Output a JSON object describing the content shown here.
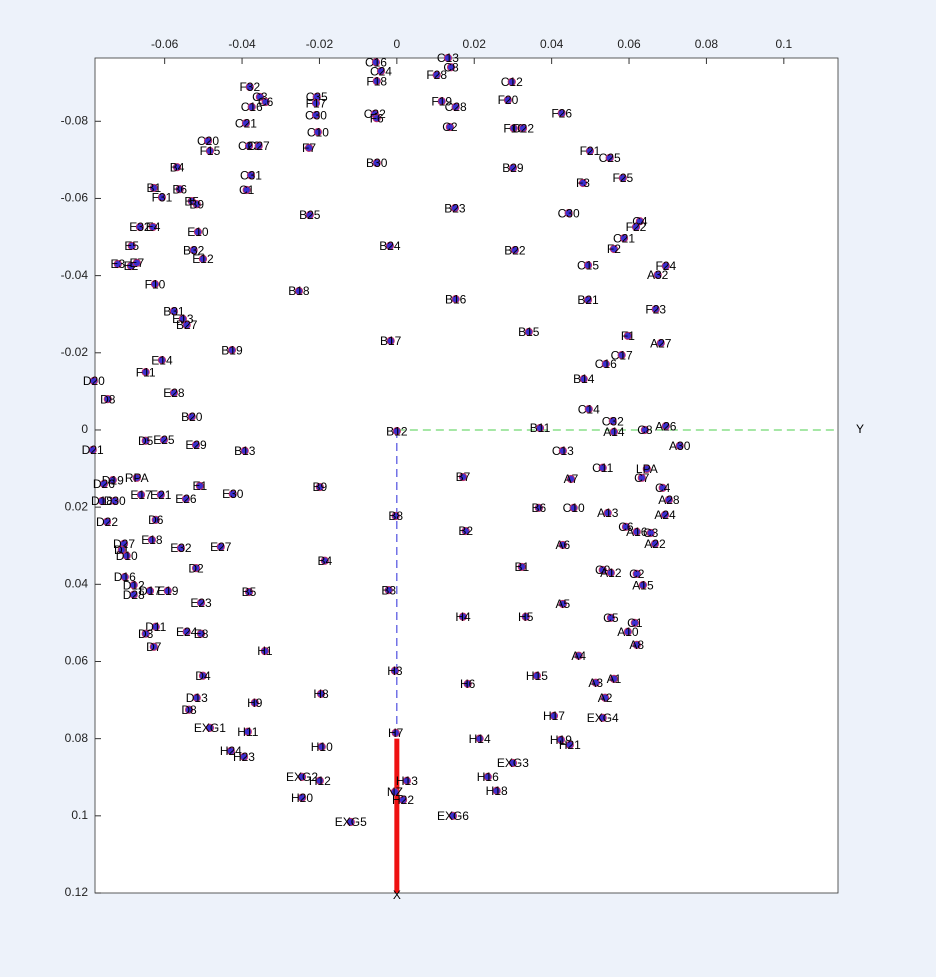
{
  "chart_data": {
    "type": "scatter",
    "xlim": [
      -0.078,
      0.114
    ],
    "ylim": [
      -0.0964,
      0.12
    ],
    "xticks": [
      -0.06,
      -0.04,
      -0.02,
      0,
      0.02,
      0.04,
      0.06,
      0.08,
      0.1
    ],
    "yticks": [
      -0.08,
      -0.06,
      -0.04,
      -0.02,
      0,
      0.02,
      0.04,
      0.06,
      0.08,
      0.1,
      0.12
    ],
    "y_reversed": true,
    "x_axis_top": true,
    "point_color": "#3b2fd0",
    "point_edge": "#c0306a",
    "reference_axes": {
      "x_label": "X",
      "y_label": "Y",
      "x_color": "#2a2ad8",
      "y_color": "#4ccf4c",
      "nose_color": "#ee1111",
      "nose_segment": [
        0.08,
        0.12
      ]
    },
    "labels": [
      "C16",
      "C24",
      "F18",
      "C13",
      "C8",
      "F28",
      "C12",
      "F20",
      "F19",
      "C28",
      "C32",
      "F6",
      "C2",
      "F10",
      "C22",
      "F26",
      "F32",
      "C3",
      "C6",
      "C16",
      "C35",
      "F17",
      "C30",
      "C10",
      "C21",
      "F7",
      "C20",
      "F15",
      "C23",
      "C27",
      "B4",
      "C31",
      "C1",
      "B1",
      "F31",
      "B6",
      "B5",
      "B9",
      "B25",
      "B30",
      "F21",
      "C25",
      "F3",
      "F25",
      "B29",
      "B23",
      "C30",
      "C4",
      "F22",
      "C21",
      "F2",
      "B22",
      "B24",
      "E32",
      "E4",
      "E10",
      "E5",
      "B32",
      "E12",
      "E3",
      "E2",
      "E7",
      "F10",
      "C15",
      "F24",
      "A32",
      "B18",
      "B16",
      "B21",
      "F23",
      "B31",
      "E13",
      "B27",
      "B15",
      "F1",
      "A27",
      "B17",
      "B19",
      "C17",
      "C16",
      "E14",
      "F11",
      "B14",
      "D20",
      "E28",
      "D8",
      "C14",
      "B20",
      "C32",
      "A26",
      "C8",
      "A14",
      "B11",
      "B12",
      "A30",
      "D5",
      "E25",
      "E29",
      "D21",
      "B13",
      "C13",
      "C11",
      "LPA",
      "C7",
      "A7",
      "B7",
      "D19",
      "RPA",
      "D26",
      "E1",
      "B9",
      "C4",
      "E30",
      "E17",
      "E21",
      "E26",
      "D18",
      "D30",
      "A28",
      "B6",
      "C10",
      "A13",
      "A24",
      "B8",
      "D22",
      "D6",
      "C6",
      "A16",
      "C3",
      "B2",
      "E18",
      "D27",
      "E32",
      "E27",
      "A6",
      "A22",
      "D1",
      "D10",
      "B4",
      "D2",
      "B1",
      "C9",
      "A12",
      "C2",
      "D16",
      "A15",
      "D12",
      "D17",
      "E19",
      "D28",
      "B5",
      "B3",
      "E23",
      "A5",
      "H4",
      "H5",
      "C5",
      "C1",
      "D11",
      "D3",
      "E24",
      "E8",
      "A10",
      "A8",
      "D7",
      "H1",
      "A4",
      "H3",
      "D4",
      "H15",
      "H6",
      "A3",
      "A1",
      "H8",
      "D13",
      "A2",
      "H9",
      "D8",
      "H17",
      "EXG4",
      "EXG1",
      "H11",
      "H7",
      "H14",
      "H19",
      "H21",
      "H10",
      "H24",
      "H23",
      "EXG3",
      "EXG2",
      "H12",
      "H13",
      "H16",
      "NZ",
      "H18",
      "H22",
      "H20",
      "EXG5",
      "EXG6"
    ],
    "x": [
      -0.0054,
      -0.0041,
      -0.0052,
      0.0132,
      0.014,
      0.0103,
      0.0297,
      0.0287,
      0.0116,
      0.0152,
      -0.0057,
      -0.0052,
      0.0137,
      0.0302,
      0.0326,
      0.0426,
      -0.038,
      -0.0354,
      -0.0339,
      -0.0375,
      -0.0207,
      -0.0209,
      -0.0209,
      -0.0204,
      -0.039,
      -0.0227,
      -0.0488,
      -0.0483,
      -0.0382,
      -0.0357,
      -0.0568,
      -0.0377,
      -0.0388,
      -0.0628,
      -0.0607,
      -0.0561,
      -0.053,
      -0.0517,
      -0.0225,
      -0.0052,
      0.0499,
      0.055,
      0.0481,
      0.0584,
      0.03,
      0.015,
      0.0444,
      0.0628,
      0.0618,
      0.0587,
      0.0561,
      0.0305,
      -0.0018,
      -0.0664,
      -0.063,
      -0.0514,
      -0.0685,
      -0.0525,
      -0.0501,
      -0.0721,
      -0.0687,
      -0.0672,
      -0.0625,
      0.0494,
      0.0695,
      0.0674,
      -0.0253,
      0.0152,
      0.0494,
      0.0669,
      -0.0576,
      -0.0553,
      -0.0543,
      0.0341,
      0.0597,
      0.0682,
      -0.0016,
      -0.0426,
      0.0581,
      0.054,
      -0.0607,
      -0.0649,
      0.0483,
      -0.0783,
      -0.0576,
      -0.0747,
      0.0496,
      -0.053,
      0.0558,
      0.0695,
      0.0641,
      0.0561,
      0.037,
      0,
      0.0731,
      -0.0649,
      -0.0602,
      -0.0519,
      -0.0786,
      -0.0393,
      0.0429,
      0.0532,
      0.0646,
      0.0633,
      0.045,
      0.0171,
      -0.0734,
      -0.0672,
      -0.0757,
      -0.0509,
      -0.0199,
      0.0687,
      -0.0424,
      -0.0661,
      -0.061,
      -0.0545,
      -0.0762,
      -0.0729,
      0.0703,
      0.0367,
      0.0457,
      0.0545,
      0.0693,
      -0.0003,
      -0.0749,
      -0.0623,
      0.0592,
      0.062,
      0.0656,
      0.0178,
      -0.0633,
      -0.0705,
      -0.0558,
      -0.0455,
      0.0429,
      0.0667,
      -0.0711,
      -0.0698,
      -0.0186,
      -0.0519,
      0.0323,
      0.0532,
      0.0553,
      0.062,
      -0.0703,
      0.0636,
      -0.068,
      -0.0638,
      -0.0592,
      -0.068,
      -0.0382,
      -0.0021,
      -0.0506,
      0.0429,
      0.0171,
      0.0333,
      0.0553,
      0.0615,
      -0.0623,
      -0.0649,
      -0.0543,
      -0.0506,
      0.0597,
      0.062,
      -0.0628,
      -0.0341,
      0.047,
      -0.0005,
      -0.0501,
      0.0362,
      0.0183,
      0.0514,
      0.0561,
      -0.0196,
      -0.0517,
      0.0538,
      -0.0367,
      -0.0537,
      0.0406,
      0.0532,
      -0.0483,
      -0.0385,
      -0.0003,
      0.0214,
      0.0424,
      0.0447,
      -0.0194,
      -0.0429,
      -0.0395,
      0.03,
      -0.0245,
      -0.0199,
      0.0026,
      0.0235,
      -0.0005,
      0.0258,
      0.0016,
      -0.0245,
      -0.0119,
      0.0145
    ],
    "y": [
      -0.0953,
      -0.093,
      -0.0904,
      -0.0964,
      -0.094,
      -0.092,
      -0.0902,
      -0.0855,
      -0.0852,
      -0.0837,
      -0.0819,
      -0.0808,
      -0.0785,
      -0.0782,
      -0.0782,
      -0.0821,
      -0.0889,
      -0.0863,
      -0.085,
      -0.0837,
      -0.0863,
      -0.0847,
      -0.0816,
      -0.0772,
      -0.0795,
      -0.0731,
      -0.0749,
      -0.0723,
      -0.0736,
      -0.0736,
      -0.0681,
      -0.066,
      -0.0622,
      -0.0627,
      -0.0603,
      -0.0624,
      -0.0593,
      -0.0585,
      -0.0557,
      -0.0692,
      -0.0723,
      -0.0705,
      -0.064,
      -0.0653,
      -0.0679,
      -0.0575,
      -0.0562,
      -0.0541,
      -0.0526,
      -0.0497,
      -0.0469,
      -0.0466,
      -0.0477,
      -0.0526,
      -0.0526,
      -0.0513,
      -0.0477,
      -0.0466,
      -0.0443,
      -0.043,
      -0.0425,
      -0.0433,
      -0.0378,
      -0.0427,
      -0.0425,
      -0.0402,
      -0.036,
      -0.0339,
      -0.0337,
      -0.0313,
      -0.0308,
      -0.0288,
      -0.0272,
      -0.0254,
      -0.0244,
      -0.0225,
      -0.0231,
      -0.0207,
      -0.0194,
      -0.0171,
      -0.0181,
      -0.015,
      -0.0132,
      -0.0127,
      -0.0096,
      -0.008,
      -0.0054,
      -0.0034,
      -0.0023,
      -0.001,
      0,
      0.0005,
      -0.0005,
      0.0003,
      0.0041,
      0.0028,
      0.0026,
      0.0039,
      0.0052,
      0.0054,
      0.0054,
      0.0098,
      0.0101,
      0.0124,
      0.0127,
      0.0122,
      0.013,
      0.0124,
      0.014,
      0.0145,
      0.0148,
      0.015,
      0.0166,
      0.0168,
      0.0168,
      0.0179,
      0.0184,
      0.0184,
      0.0181,
      0.0202,
      0.0202,
      0.0215,
      0.022,
      0.0223,
      0.0238,
      0.0233,
      0.0251,
      0.0264,
      0.0267,
      0.0262,
      0.0285,
      0.0295,
      0.0306,
      0.0303,
      0.0298,
      0.0295,
      0.0311,
      0.0326,
      0.0339,
      0.0358,
      0.0355,
      0.0363,
      0.037,
      0.0373,
      0.0381,
      0.0402,
      0.0402,
      0.0417,
      0.0417,
      0.0427,
      0.042,
      0.0415,
      0.0448,
      0.0451,
      0.0484,
      0.0484,
      0.0487,
      0.05,
      0.051,
      0.0528,
      0.0523,
      0.0528,
      0.0523,
      0.0557,
      0.0562,
      0.0573,
      0.0585,
      0.0624,
      0.0637,
      0.0637,
      0.0658,
      0.0655,
      0.0645,
      0.0684,
      0.0694,
      0.0694,
      0.0707,
      0.0725,
      0.0741,
      0.0746,
      0.0772,
      0.0782,
      0.0785,
      0.08,
      0.0803,
      0.0816,
      0.0821,
      0.0832,
      0.0847,
      0.0863,
      0.0899,
      0.0909,
      0.0909,
      0.0899,
      0.0938,
      0.0935,
      0.0959,
      0.0953,
      0.1016,
      0.1
    ]
  }
}
